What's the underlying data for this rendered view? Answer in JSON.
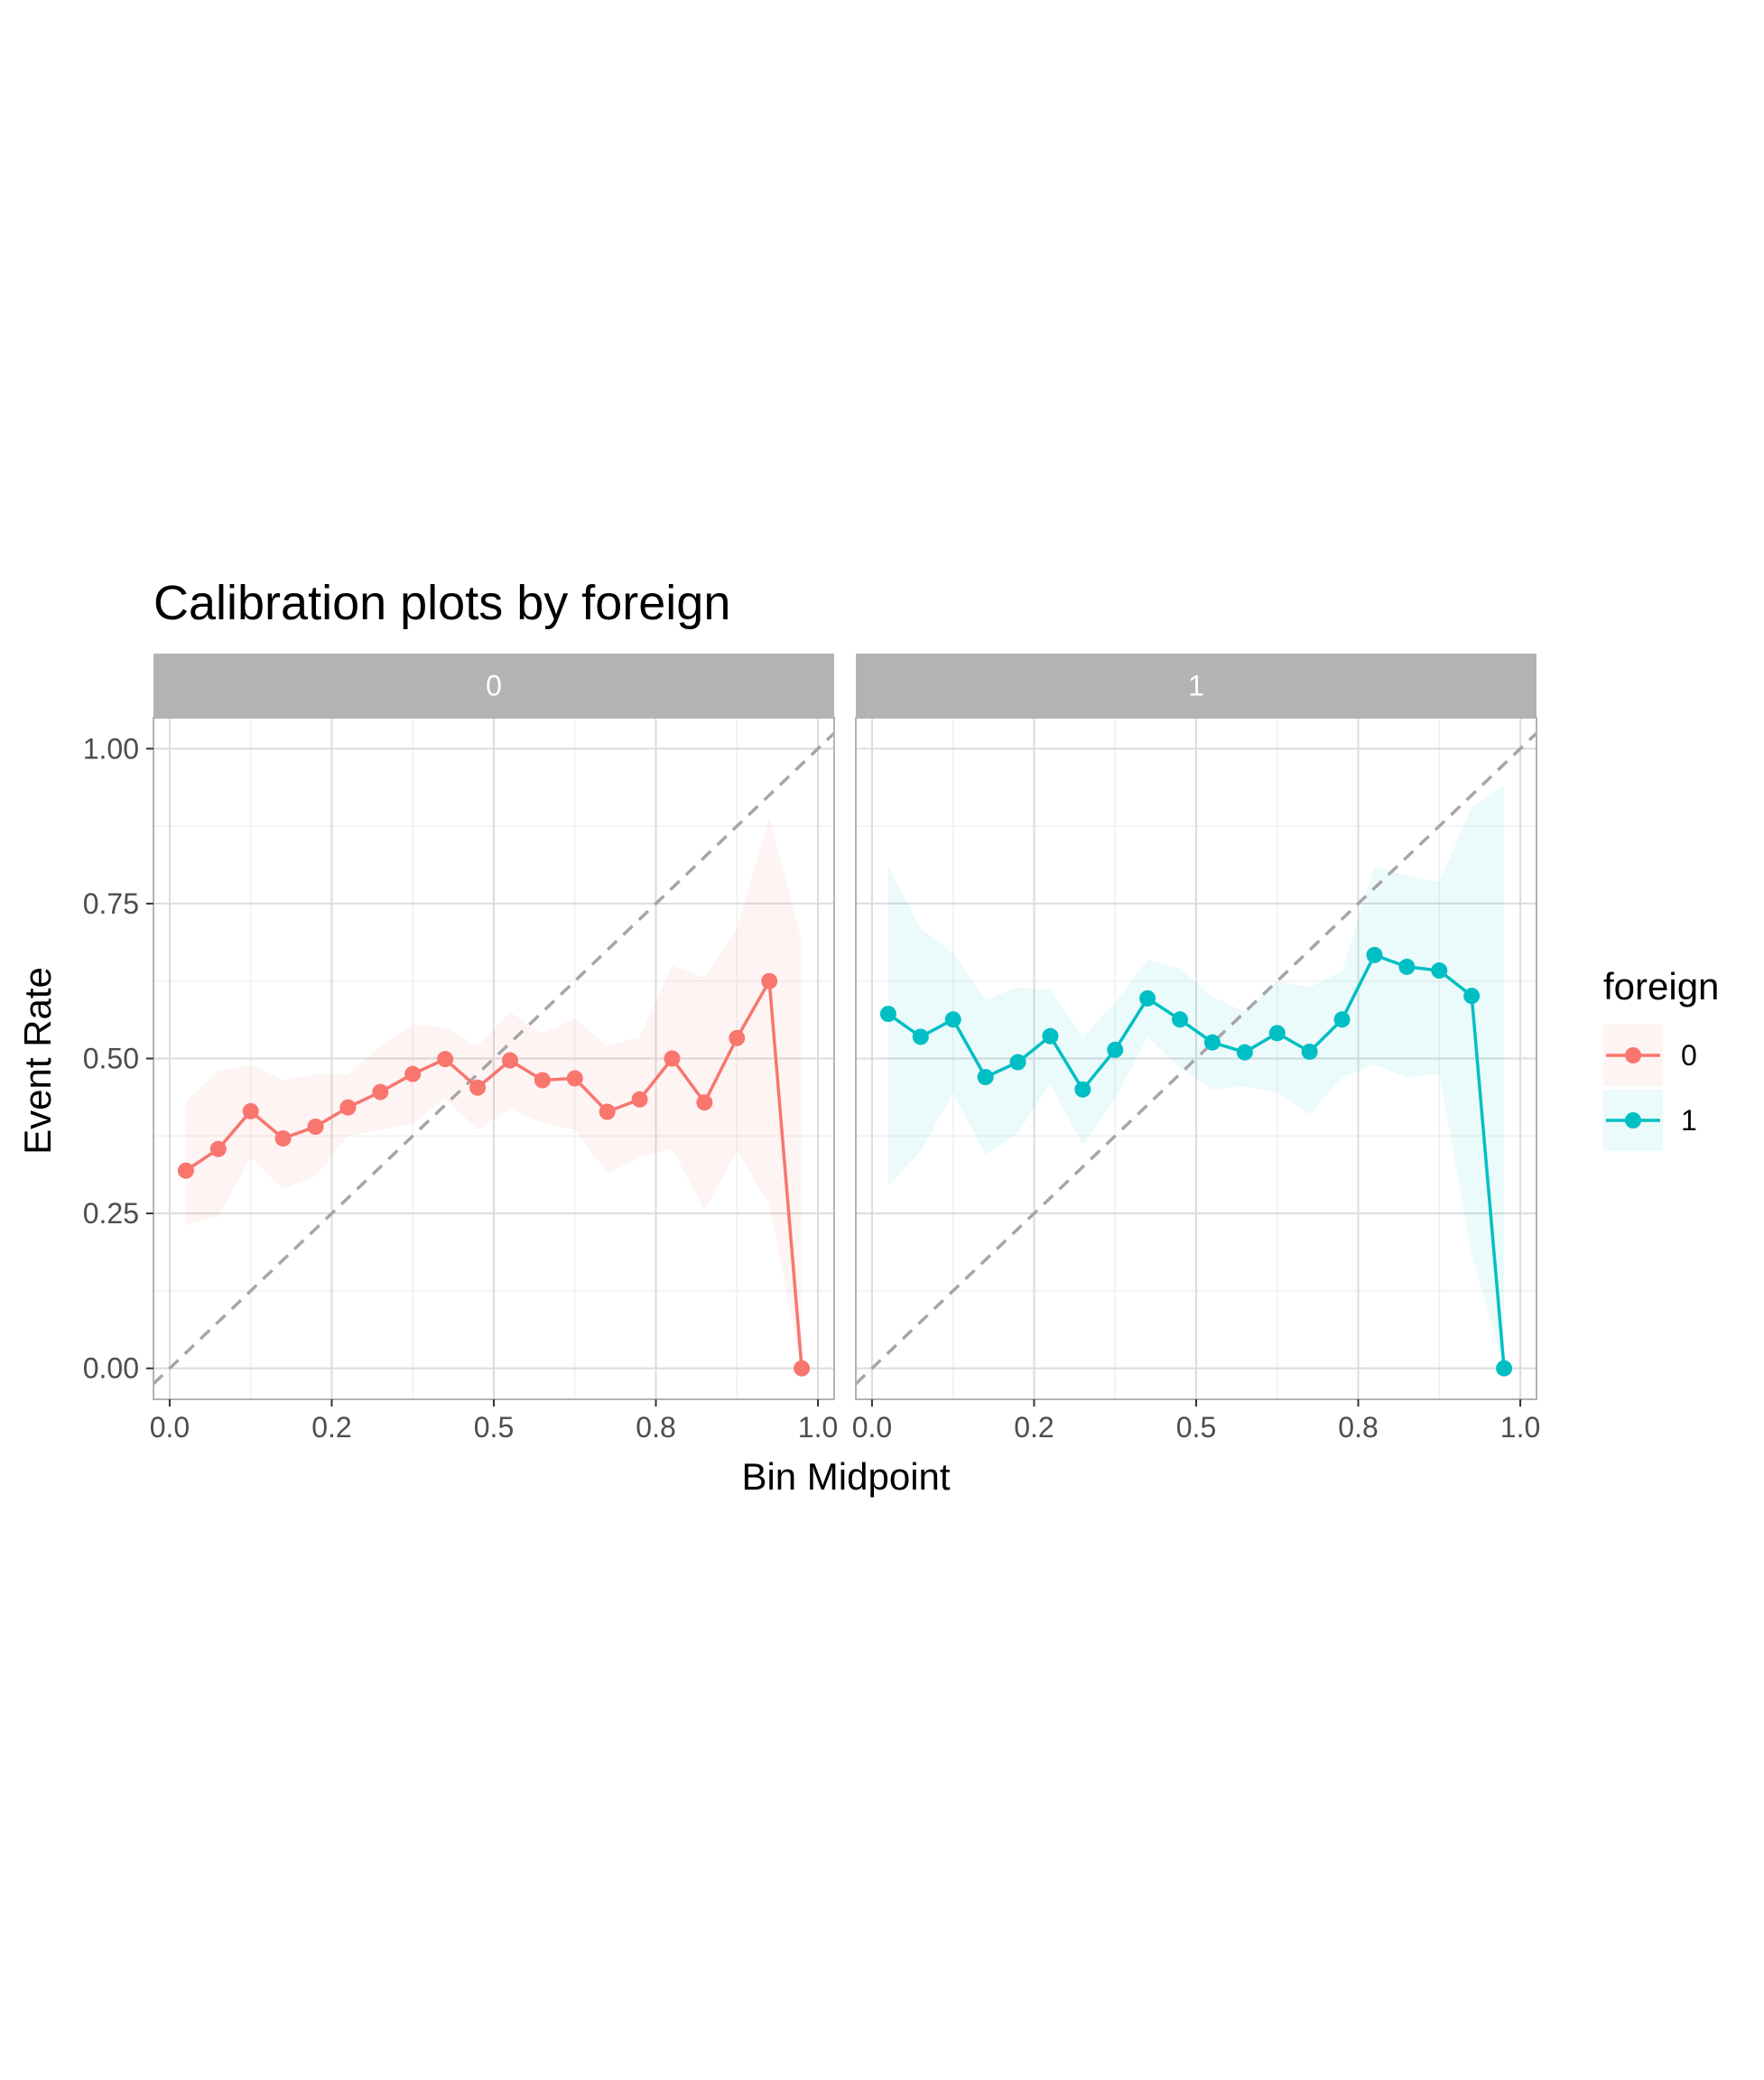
{
  "chart_data": {
    "type": "line",
    "title": "Calibration plots by foreign",
    "xlabel": "Bin Midpoint",
    "ylabel": "Event Rate",
    "xlim": [
      -0.025,
      1.025
    ],
    "ylim": [
      -0.05,
      1.05
    ],
    "x_ticks": [
      0.0,
      0.25,
      0.5,
      0.75,
      1.0
    ],
    "x_tick_labels": [
      "0.0",
      "0.2",
      "0.5",
      "0.8",
      "1.0"
    ],
    "y_ticks": [
      0.0,
      0.25,
      0.5,
      0.75,
      1.0
    ],
    "y_tick_labels": [
      "0.00",
      "0.25",
      "0.50",
      "0.75",
      "1.00"
    ],
    "grid": true,
    "reference_line": "y = x (dashed)",
    "legend": {
      "title": "foreign",
      "position": "right",
      "entries": [
        "0",
        "1"
      ]
    },
    "colors": {
      "0": "#F8766D",
      "1": "#00BFC4"
    },
    "panels": [
      {
        "strip": "0",
        "series": "0",
        "x": [
          0.025,
          0.075,
          0.125,
          0.175,
          0.225,
          0.275,
          0.325,
          0.375,
          0.425,
          0.475,
          0.525,
          0.575,
          0.625,
          0.675,
          0.725,
          0.775,
          0.825,
          0.875,
          0.925,
          0.975
        ],
        "y": [
          0.319,
          0.354,
          0.415,
          0.371,
          0.39,
          0.421,
          0.446,
          0.475,
          0.499,
          0.453,
          0.497,
          0.465,
          0.468,
          0.414,
          0.434,
          0.5,
          0.429,
          0.533,
          0.625,
          0.0
        ],
        "ci_low": [
          0.23,
          0.245,
          0.34,
          0.29,
          0.31,
          0.375,
          0.385,
          0.395,
          0.435,
          0.385,
          0.42,
          0.395,
          0.385,
          0.315,
          0.34,
          0.355,
          0.255,
          0.35,
          0.265,
          0.0
        ],
        "ci_high": [
          0.43,
          0.48,
          0.49,
          0.465,
          0.475,
          0.475,
          0.52,
          0.555,
          0.55,
          0.52,
          0.575,
          0.54,
          0.565,
          0.52,
          0.535,
          0.65,
          0.63,
          0.71,
          0.89,
          0.69
        ]
      },
      {
        "strip": "1",
        "series": "1",
        "x": [
          0.025,
          0.075,
          0.125,
          0.175,
          0.225,
          0.275,
          0.325,
          0.375,
          0.425,
          0.475,
          0.525,
          0.575,
          0.625,
          0.675,
          0.725,
          0.775,
          0.825,
          0.875,
          0.925,
          0.975
        ],
        "y": [
          0.572,
          0.535,
          0.563,
          0.47,
          0.494,
          0.536,
          0.45,
          0.514,
          0.597,
          0.563,
          0.526,
          0.51,
          0.541,
          0.511,
          0.563,
          0.667,
          0.648,
          0.642,
          0.601,
          0.0
        ],
        "ci_low": [
          0.295,
          0.35,
          0.445,
          0.345,
          0.38,
          0.46,
          0.36,
          0.435,
          0.535,
          0.485,
          0.45,
          0.455,
          0.445,
          0.41,
          0.47,
          0.49,
          0.47,
          0.475,
          0.185,
          0.0
        ],
        "ci_high": [
          0.81,
          0.71,
          0.67,
          0.595,
          0.615,
          0.61,
          0.535,
          0.59,
          0.66,
          0.645,
          0.6,
          0.575,
          0.625,
          0.615,
          0.64,
          0.81,
          0.795,
          0.785,
          0.905,
          0.94
        ]
      }
    ]
  }
}
